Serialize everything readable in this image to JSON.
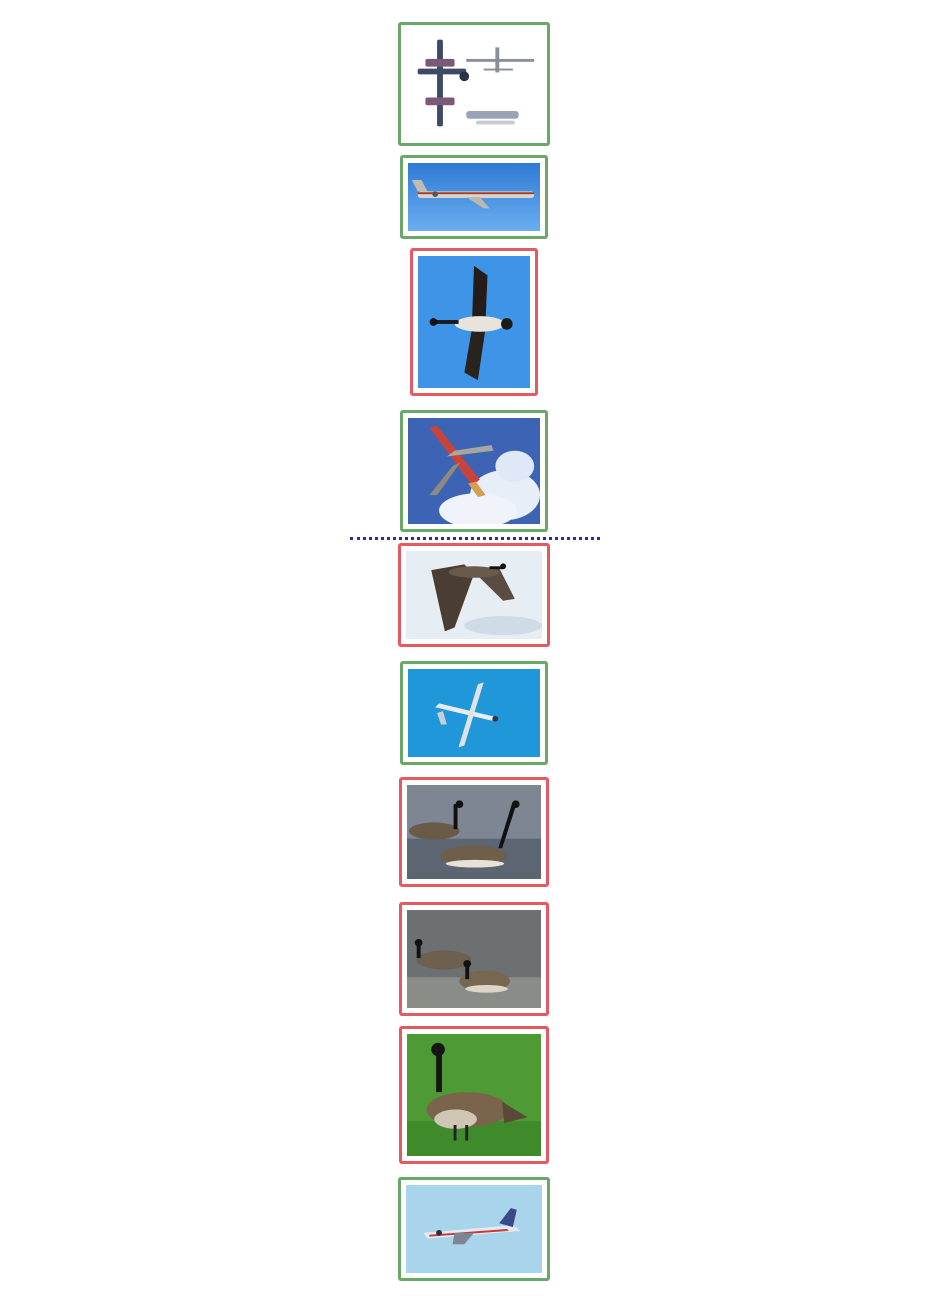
{
  "colors": {
    "positive_border": "#6aa86a",
    "negative_border": "#e45a63",
    "divider": "#2b2f8f"
  },
  "ranked_results": [
    {
      "subject": "aircraft-collage",
      "match": "positive"
    },
    {
      "subject": "airliner",
      "match": "positive"
    },
    {
      "subject": "goose-in-flight",
      "match": "negative"
    },
    {
      "subject": "airliner-underside",
      "match": "positive"
    },
    {
      "subject": "goose-in-flight",
      "match": "negative"
    },
    {
      "subject": "propeller-plane",
      "match": "positive"
    },
    {
      "subject": "geese-swimming",
      "match": "negative"
    },
    {
      "subject": "geese-swimming",
      "match": "negative"
    },
    {
      "subject": "goose-on-grass",
      "match": "negative"
    },
    {
      "subject": "jet-trainer",
      "match": "positive"
    }
  ],
  "divider_after_index": 3
}
